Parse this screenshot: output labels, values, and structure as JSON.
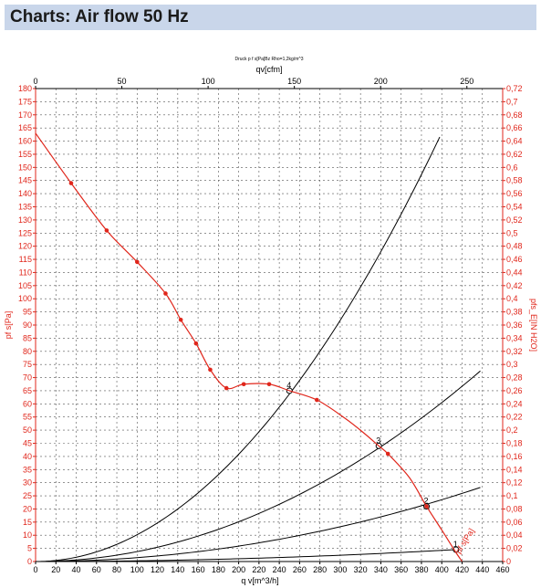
{
  "header": {
    "title": "Charts: Air flow 50 Hz"
  },
  "chart_data": {
    "type": "line",
    "title": "Druck p f s[Pa]Bz Rho=1,2kg/m^3",
    "top_axis_label": "qv[cfm]",
    "xlabel": "q v[m^3/h]",
    "ylabel_left": "pf s[Pa]",
    "ylabel_right": "pfs_E[IN H2O]",
    "curve_label": "pf s[Pa]",
    "xlim": [
      0,
      460
    ],
    "ylim": [
      0,
      180
    ],
    "x_ticks": [
      0,
      20,
      40,
      60,
      80,
      100,
      120,
      140,
      160,
      180,
      200,
      220,
      240,
      260,
      280,
      300,
      320,
      340,
      360,
      380,
      400,
      420,
      440,
      460
    ],
    "top_ticks": [
      "0",
      "50",
      "100",
      "150",
      "200",
      "250"
    ],
    "y_ticks_left": [
      0,
      5,
      10,
      15,
      20,
      25,
      30,
      35,
      40,
      45,
      50,
      55,
      60,
      65,
      70,
      75,
      80,
      85,
      90,
      95,
      100,
      105,
      110,
      115,
      120,
      125,
      130,
      135,
      140,
      145,
      150,
      155,
      160,
      165,
      170,
      175,
      180
    ],
    "y_ticks_right": [
      "0",
      "0,02",
      "0,04",
      "0,06",
      "0,08",
      "0,1",
      "0,12",
      "0,14",
      "0,16",
      "0,18",
      "0,2",
      "0,22",
      "0,24",
      "0,26",
      "0,28",
      "0,3",
      "0,32",
      "0,34",
      "0,36",
      "0,38",
      "0,4",
      "0,42",
      "0,44",
      "0,46",
      "0,48",
      "0,5",
      "0,52",
      "0,54",
      "0,56",
      "0,58",
      "0,6",
      "0,62",
      "0,64",
      "0,66",
      "0,68",
      "0,7",
      "0,72"
    ],
    "grid": true,
    "colors": {
      "fan_curve": "#e0261b",
      "system_curves": "#000000",
      "header_bg": "#c9d6ea"
    },
    "fan_curve": {
      "x": [
        0,
        35,
        70,
        100,
        128,
        143,
        158,
        172,
        188,
        205,
        230,
        250,
        277,
        303,
        323,
        338,
        347,
        368,
        385,
        400,
        413,
        420
      ],
      "y": [
        163,
        144,
        126,
        114,
        102,
        92,
        83,
        73,
        66,
        67.5,
        67.5,
        65,
        61.5,
        55,
        49,
        44,
        41,
        32,
        21,
        12,
        4,
        0
      ],
      "markers_x": [
        35,
        70,
        100,
        128,
        143,
        158,
        172,
        188,
        205,
        230,
        277,
        347,
        385
      ],
      "markers_y": [
        144,
        126,
        114,
        102,
        92,
        83,
        73,
        66,
        67.5,
        67.5,
        61.5,
        41,
        21
      ]
    },
    "system_curves": [
      {
        "label": "4",
        "k": 0.00102,
        "x_end": 398,
        "marker_x": 250,
        "marker_y": 65
      },
      {
        "label": "3",
        "k": 0.000378,
        "x_end": 438,
        "marker_x": 338,
        "marker_y": 44
      },
      {
        "label": "2",
        "k": 0.000147,
        "x_end": 438,
        "marker_x": 385,
        "marker_y": 21
      },
      {
        "label": "1",
        "k": 2.66e-05,
        "x_end": 414,
        "marker_x": 414,
        "marker_y": 4.5
      }
    ]
  }
}
